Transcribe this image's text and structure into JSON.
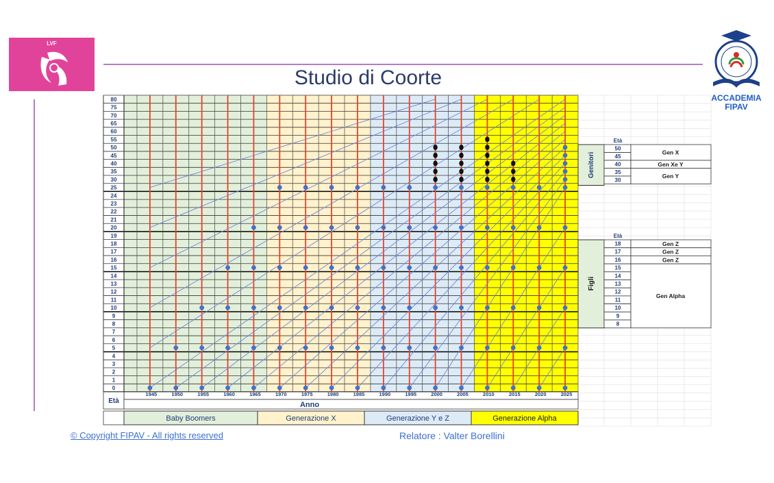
{
  "header": {
    "title": "Studio di Coorte",
    "logo_left_text": "LVF",
    "logo_right_line1": "ACCADEMIA",
    "logo_right_line2": "FIPAV"
  },
  "footer": {
    "copyright": "© Copyright FIPAV  - All rights reserved",
    "relatore": "Relatore : Valter Borellini"
  },
  "chart_data": {
    "type": "scatter",
    "title": "Studio di Coorte",
    "xlabel": "Anno",
    "ylabel": "Età",
    "x_ticks": [
      1945,
      1950,
      1955,
      1960,
      1965,
      1970,
      1975,
      1980,
      1985,
      1990,
      1995,
      2000,
      2005,
      2010,
      2015,
      2020,
      2025
    ],
    "y_ticks": [
      0,
      1,
      2,
      3,
      4,
      5,
      6,
      7,
      8,
      9,
      10,
      11,
      12,
      13,
      14,
      15,
      16,
      17,
      18,
      19,
      20,
      21,
      22,
      23,
      24,
      25,
      30,
      35,
      40,
      45,
      50,
      55,
      60,
      65,
      70,
      75,
      80
    ],
    "grid": true,
    "generations": [
      {
        "label": "Baby Boomers",
        "from": 1945,
        "to": 1965,
        "color": "#e2efda"
      },
      {
        "label": "Generazione X",
        "from": 1965,
        "to": 1985,
        "color": "#fff2cc"
      },
      {
        "label": "Generazione Y e Z",
        "from": 1985,
        "to": 2005,
        "color": "#ddebf7"
      },
      {
        "label": "Generazione Alpha",
        "from": 2005,
        "to": 2025,
        "color": "#ffff00"
      }
    ],
    "cohort_births": [
      1945,
      1950,
      1955,
      1960,
      1965,
      1970,
      1975,
      1980,
      1985,
      1990,
      1995,
      2000,
      2005,
      2010,
      2015,
      2020,
      2025
    ],
    "cohort_marker_ages": [
      0,
      5,
      10,
      15,
      20,
      25,
      30,
      35,
      40,
      45,
      50
    ],
    "parent_markers": [
      {
        "year": 2000,
        "ages": [
          30,
          35,
          40,
          45,
          50
        ]
      },
      {
        "year": 2005,
        "ages": [
          30,
          35,
          40,
          45,
          50
        ]
      },
      {
        "year": 2010,
        "ages": [
          30,
          35,
          40,
          45,
          50,
          55
        ]
      },
      {
        "year": 2015,
        "ages": [
          30,
          35,
          40
        ]
      }
    ],
    "series": [
      {
        "name": "Genitori",
        "color": "#000000"
      }
    ],
    "side_panel": {
      "genitori_label": "Genitori",
      "figli_label": "Figli",
      "eta_label": "Età",
      "genitori_rows": [
        {
          "age": "50",
          "gen": "Gen X"
        },
        {
          "age": "45",
          "gen": ""
        },
        {
          "age": "40",
          "gen": "Gen Xe Y"
        },
        {
          "age": "35",
          "gen": "Gen Y"
        },
        {
          "age": "30",
          "gen": ""
        }
      ],
      "figli_rows": [
        {
          "age": "18",
          "gen": "Gen Z"
        },
        {
          "age": "17",
          "gen": "Gen Z"
        },
        {
          "age": "16",
          "gen": "Gen Z"
        },
        {
          "age": "15",
          "gen": ""
        },
        {
          "age": "14",
          "gen": ""
        },
        {
          "age": "13",
          "gen": ""
        },
        {
          "age": "12",
          "gen": "Gen Alpha"
        },
        {
          "age": "11",
          "gen": ""
        },
        {
          "age": "10",
          "gen": ""
        },
        {
          "age": "9",
          "gen": ""
        },
        {
          "age": "8",
          "gen": ""
        }
      ]
    }
  }
}
